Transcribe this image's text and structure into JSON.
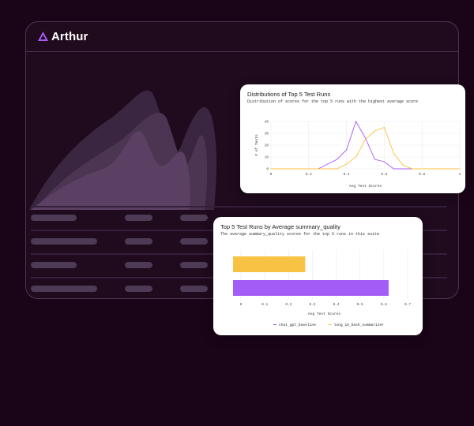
{
  "app": {
    "brand": "Arthur",
    "accent": "#a35cf5"
  },
  "dist_card": {
    "title": "Distributions of Top 5 Test Runs",
    "subtitle": "Distribution of scores for the top 5 runs with the highest average score"
  },
  "bar_card": {
    "title": "Top 5 Test Runs by Average summary_quality",
    "subtitle": "The average summary_quality scores for the top 5 runs in this suite"
  },
  "chart_data": [
    {
      "type": "line",
      "title": "Distributions of Top 5 Test Runs",
      "xlabel": "Avg Test Scores",
      "ylabel": "# of Tests",
      "xlim": [
        0,
        1
      ],
      "ylim": [
        0,
        40
      ],
      "x_ticks": [
        "0",
        "0.2",
        "0.4",
        "0.6",
        "0.8",
        "1"
      ],
      "y_ticks": [
        "0",
        "10",
        "20",
        "30",
        "40"
      ],
      "grid": true,
      "series": [
        {
          "color": "#a35cf5",
          "x": [
            0,
            0.1,
            0.2,
            0.25,
            0.3,
            0.35,
            0.4,
            0.45,
            0.5,
            0.55,
            0.6,
            0.65,
            0.7,
            0.75,
            0.8,
            0.9,
            1
          ],
          "y": [
            0,
            0,
            0,
            0,
            4,
            8,
            16,
            40,
            26,
            8,
            6,
            0,
            0,
            0,
            0,
            0,
            0
          ]
        },
        {
          "color": "#f8c244",
          "x": [
            0,
            0.1,
            0.2,
            0.3,
            0.35,
            0.4,
            0.45,
            0.5,
            0.55,
            0.6,
            0.65,
            0.7,
            0.75,
            0.8,
            0.9,
            1
          ],
          "y": [
            0,
            0,
            0,
            0,
            0,
            4,
            10,
            25,
            32,
            35,
            13,
            3,
            0,
            0,
            0,
            0
          ]
        }
      ]
    },
    {
      "type": "bar",
      "orientation": "horizontal",
      "title": "Top 5 Test Runs by Average summary_quality",
      "xlabel": "Avg Test Scores",
      "xlim": [
        0,
        0.7
      ],
      "x_ticks": [
        "0",
        "0.1",
        "0.2",
        "0.3",
        "0.4",
        "0.5",
        "0.6",
        "0.7"
      ],
      "categories": [
        "long_15_bash_summarizer",
        "chat_gpt_baseline"
      ],
      "values": [
        0.27,
        0.62
      ],
      "colors": [
        "#f8c244",
        "#a35cf5"
      ],
      "legend": [
        "chat_gpt_baseline",
        "long_15_bash_summarizer"
      ],
      "legend_colors": [
        "#a35cf5",
        "#f8c244"
      ],
      "legend_position": "bottom"
    }
  ]
}
